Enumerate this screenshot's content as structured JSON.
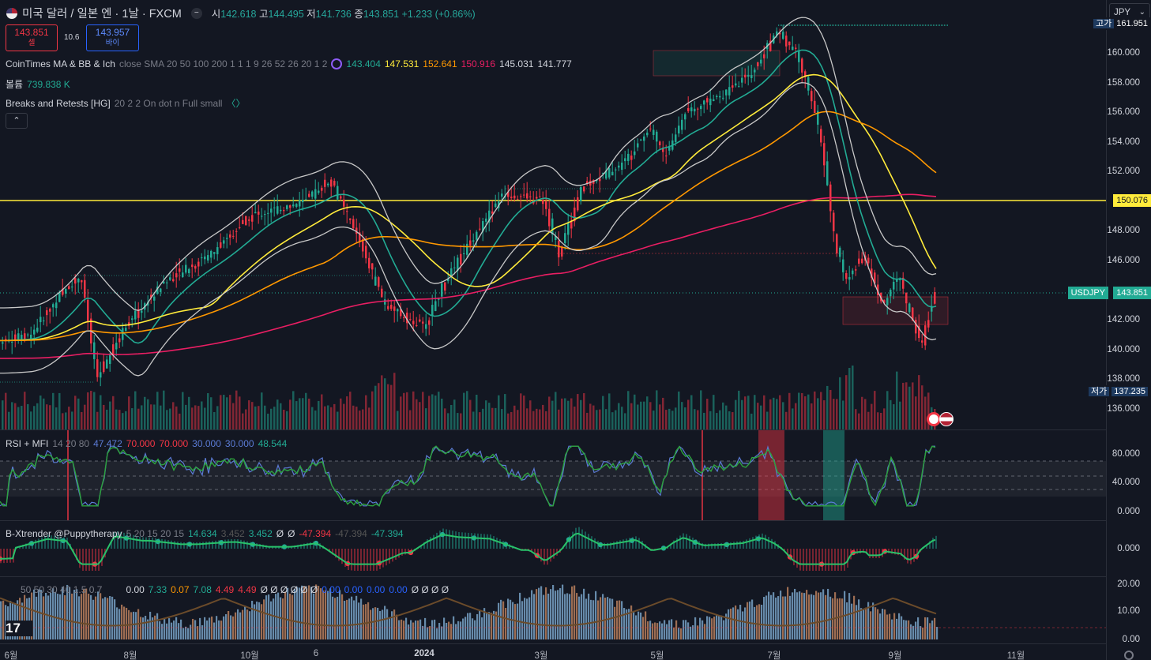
{
  "header": {
    "symbol_title": "미국 달러 / 일본 엔 · 1날 · FXCM",
    "open_label": "시",
    "open": "142.618",
    "high_label": "고",
    "high": "144.495",
    "low_label": "저",
    "low": "141.736",
    "close_label": "종",
    "close": "143.851",
    "change": "+1.233 (+0.86%)"
  },
  "trade": {
    "sell_price": "143.851",
    "sell_label": "셀",
    "spread": "10.6",
    "buy_price": "143.957",
    "buy_label": "바이"
  },
  "legends": {
    "ma": {
      "name": "CoinTimes MA & BB & Ich",
      "params": "close SMA 20 50 100 200 1 1 1 9 26 52 26 20 1 2",
      "v1": "143.404",
      "v2": "147.531",
      "v3": "152.641",
      "v4": "150.916",
      "v5": "145.031",
      "v6": "141.777"
    },
    "volume": {
      "name": "볼륨",
      "value": "739.838 K"
    },
    "breaks": {
      "name": "Breaks and Retests [HG]",
      "params": "20 2 2 On dot n Full small"
    },
    "rsi": {
      "name": "RSI + MFI",
      "params": "14 20 80",
      "v1": "47.472",
      "v2": "70.000",
      "v3": "70.000",
      "v4": "30.000",
      "v5": "30.000",
      "v6": "48.544"
    },
    "bx": {
      "name": "B-Xtrender @Puppytherapy",
      "params": "5 20 15 20 15",
      "v1": "14.634",
      "v2": "3.452",
      "v3": "3.452",
      "v4": "Ø",
      "v5": "Ø",
      "v6": "-47.394",
      "v7": "-47.394",
      "v8": "-47.394"
    },
    "bottom": {
      "params": "50 50 30 40 1.5 0.7",
      "v1": "0.00",
      "v2": "7.33",
      "v3": "0.07",
      "v4": "7.08",
      "v5": "4.49",
      "v6": "4.49",
      "rest": "Ø Ø Ø Ø Ø Ø",
      "z1": "0.00",
      "z2": "0.00",
      "z3": "0.00",
      "z4": "0.00",
      "tail": "Ø Ø Ø Ø"
    }
  },
  "currency_select": {
    "value": "JPY"
  },
  "price_axis": {
    "labels": [
      "160.000",
      "158.000",
      "156.000",
      "154.000",
      "152.000",
      "148.000",
      "146.000",
      "142.000",
      "140.000",
      "138.000",
      "136.000"
    ],
    "high_tag_label": "고가",
    "high_tag_value": "161.951",
    "level_tag": "150.076",
    "symbol_tag": "USDJPY",
    "last_price_tag": "143.851",
    "low_tag_label": "저가",
    "low_tag_value": "137.235"
  },
  "rsi_axis": [
    "80.000",
    "40.000",
    "0.000"
  ],
  "bx_axis": [
    "0.000"
  ],
  "bottom_axis": [
    "20.00",
    "10.00",
    "0.00"
  ],
  "time_axis": [
    "6월",
    "8월",
    "10월",
    "6",
    "2024",
    "3월",
    "5월",
    "7월",
    "9월",
    "11월"
  ],
  "colors": {
    "up": "#22ab94",
    "down": "#f23645",
    "yellow": "#ffeb3b",
    "orange": "#ff9800",
    "pink": "#e91e63",
    "bb": "#c8c8c8"
  }
}
